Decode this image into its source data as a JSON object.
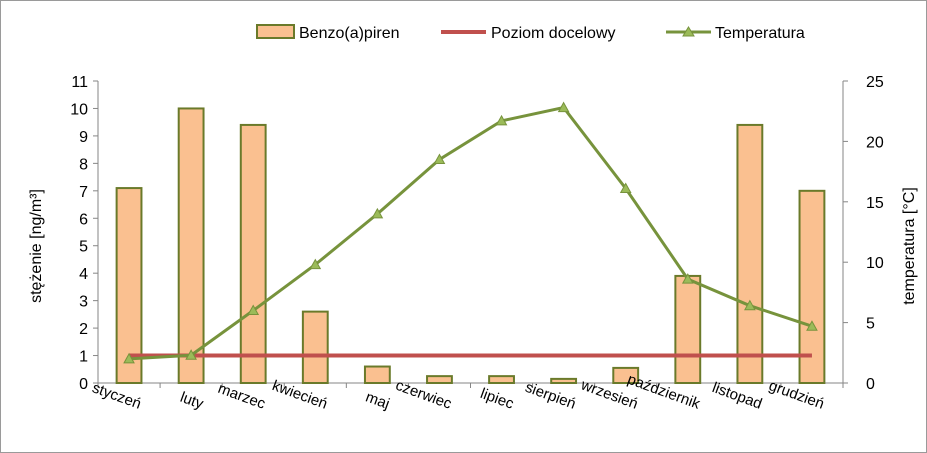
{
  "chart_data": {
    "type": "bar",
    "categories": [
      "styczeń",
      "luty",
      "marzec",
      "kwiecień",
      "maj",
      "czerwiec",
      "lipiec",
      "sierpień",
      "wrzesień",
      "październik",
      "listopad",
      "grudzień"
    ],
    "series": [
      {
        "name": "Benzo(a)piren",
        "type": "bar",
        "axis": "left",
        "values": [
          7.1,
          10.0,
          9.4,
          2.6,
          0.6,
          0.25,
          0.25,
          0.15,
          0.55,
          3.9,
          9.4,
          7.0
        ],
        "fill": "#fac090",
        "stroke": "#6a7a2a"
      },
      {
        "name": "Poziom docelowy",
        "type": "line",
        "axis": "left",
        "values": [
          1,
          1,
          1,
          1,
          1,
          1,
          1,
          1,
          1,
          1,
          1,
          1
        ],
        "color": "#c0504d"
      },
      {
        "name": "Temperatura",
        "type": "line",
        "axis": "right",
        "marker": "triangle",
        "values": [
          2.0,
          2.3,
          6.0,
          9.8,
          14.0,
          18.5,
          21.7,
          22.8,
          16.1,
          8.6,
          6.4,
          4.7
        ],
        "color": "#77933c",
        "marker_color": "#9bbb59"
      }
    ],
    "ylabel": "stężenie [ng/m³]",
    "y2label": "temperatura [°C]",
    "ylim": [
      0,
      11
    ],
    "yticks": [
      "0",
      "1",
      "2",
      "3",
      "4",
      "5",
      "6",
      "7",
      "8",
      "9",
      "10",
      "11"
    ],
    "y2lim": [
      0,
      25
    ],
    "y2ticks": [
      "0",
      "5",
      "10",
      "15",
      "20",
      "25"
    ],
    "grid": false,
    "legend_position": "top"
  }
}
